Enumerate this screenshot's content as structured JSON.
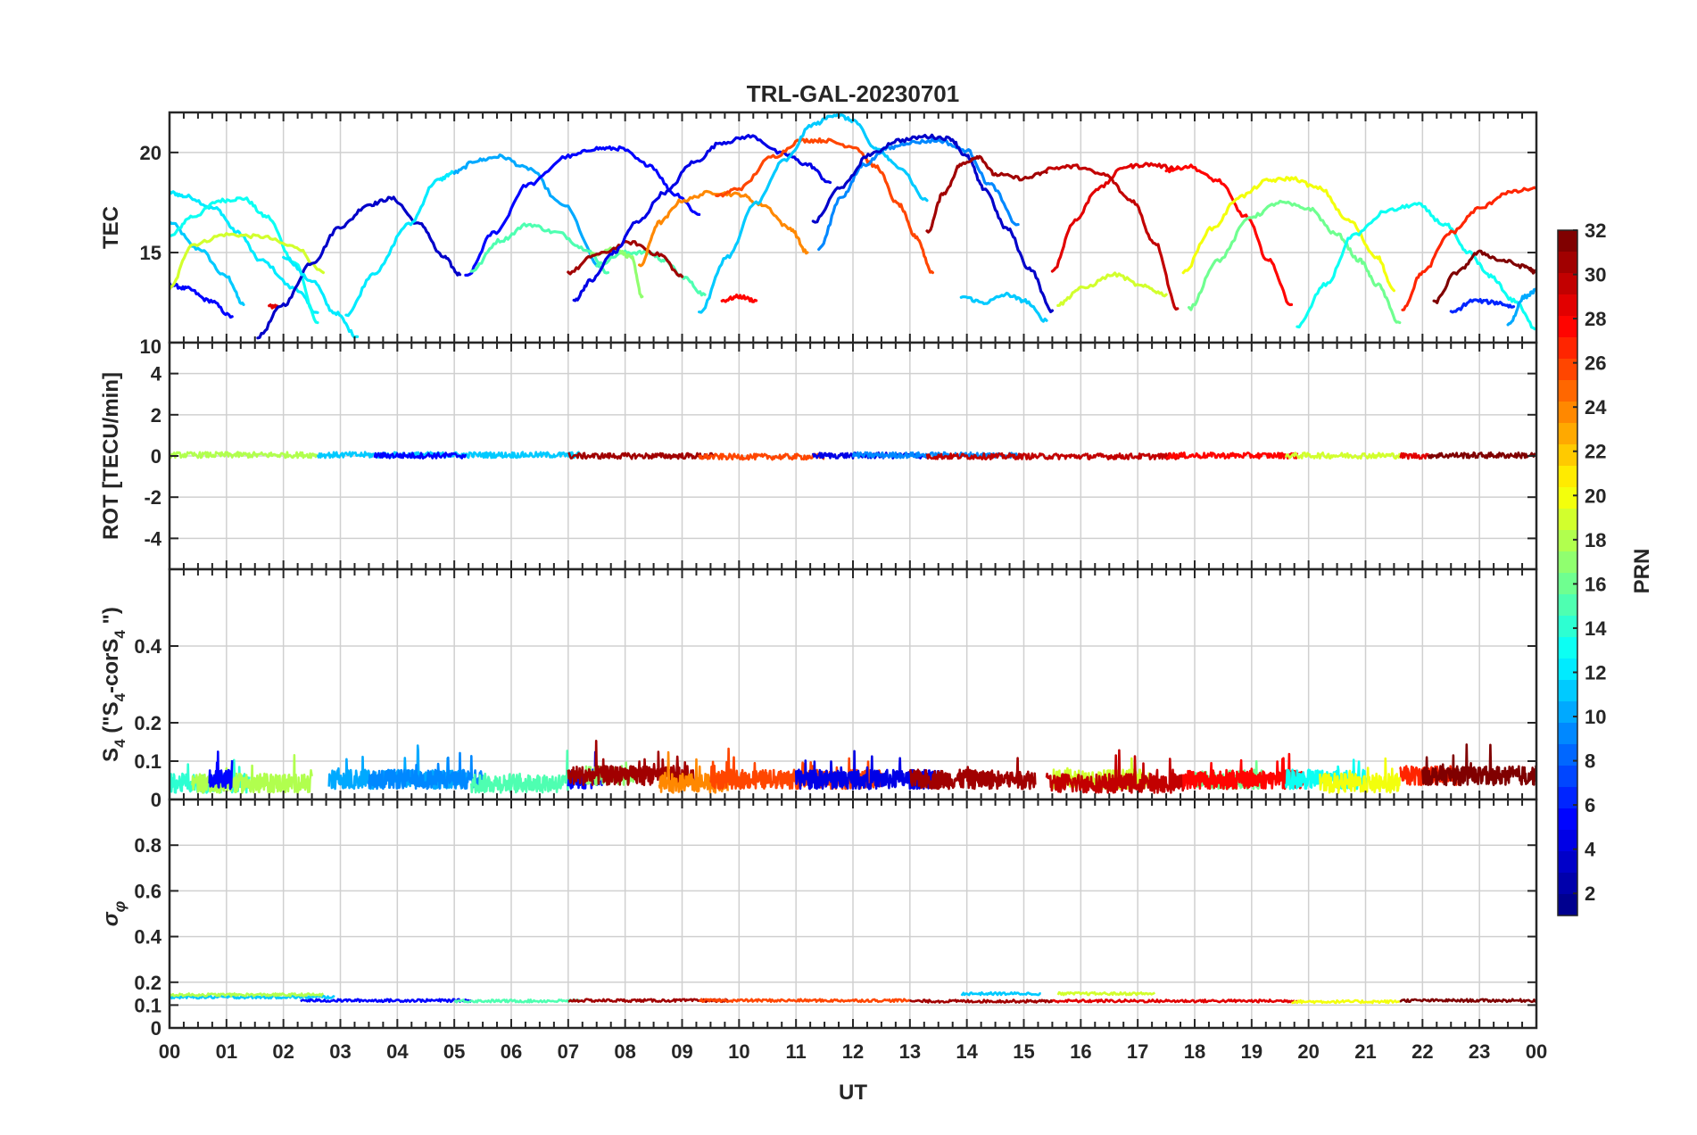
{
  "chart_data": {
    "type": "line",
    "title": "TRL-GAL-20230701",
    "xlabel": "UT",
    "x_ticks": [
      "00",
      "01",
      "02",
      "03",
      "04",
      "05",
      "06",
      "07",
      "08",
      "09",
      "10",
      "11",
      "12",
      "13",
      "14",
      "15",
      "16",
      "17",
      "18",
      "19",
      "20",
      "21",
      "22",
      "23",
      "00"
    ],
    "xlim": [
      0,
      24
    ],
    "colorbar": {
      "label": "PRN",
      "range": [
        1,
        32
      ],
      "ticks": [
        "2",
        "4",
        "6",
        "8",
        "10",
        "12",
        "14",
        "16",
        "18",
        "20",
        "22",
        "24",
        "26",
        "28",
        "30",
        "32"
      ],
      "colormap": [
        "#00008f",
        "#0000ff",
        "#0080ff",
        "#00ffff",
        "#80ff80",
        "#ffff00",
        "#ff8000",
        "#ff0000",
        "#800000"
      ]
    },
    "panels": [
      {
        "id": "tec",
        "ylabel": "TEC",
        "ylim": [
          10.5,
          22
        ],
        "y_ticks": [
          {
            "v": 15,
            "label": "15"
          },
          {
            "v": 20,
            "label": "20"
          }
        ]
      },
      {
        "id": "rot",
        "ylabel": "ROT [TECU/min]",
        "ylim": [
          -5.5,
          5.5
        ],
        "y_ticks": [
          {
            "v": -4,
            "label": "-4"
          },
          {
            "v": -2,
            "label": "-2"
          },
          {
            "v": 0,
            "label": "0"
          },
          {
            "v": 2,
            "label": "2"
          },
          {
            "v": 4,
            "label": "4"
          }
        ]
      },
      {
        "id": "s4",
        "ylabel": "S4 (\"S4-corS4\")",
        "ylim": [
          0,
          0.6
        ],
        "y_ticks": [
          {
            "v": 0,
            "label": "0"
          },
          {
            "v": 0.1,
            "label": "0.1"
          },
          {
            "v": 0.2,
            "label": "0.2"
          },
          {
            "v": 0.4,
            "label": "0.4"
          }
        ]
      },
      {
        "id": "sigma",
        "ylabel": "σφ",
        "ylim": [
          0,
          1
        ],
        "y_ticks": [
          {
            "v": 0,
            "label": "0"
          },
          {
            "v": 0.1,
            "label": "0.1"
          },
          {
            "v": 0.2,
            "label": "0.2"
          },
          {
            "v": 0.4,
            "label": "0.4"
          },
          {
            "v": 0.6,
            "label": "0.6"
          },
          {
            "v": 0.8,
            "label": "0.8"
          }
        ]
      }
    ],
    "tec_series": [
      {
        "prn": 11,
        "x": [
          0,
          0.5,
          1.0,
          1.3
        ],
        "y": [
          16.5,
          15.2,
          13.8,
          12.4
        ]
      },
      {
        "prn": 12,
        "x": [
          0,
          0.3,
          0.8,
          1.2,
          1.6,
          2.2,
          2.6
        ],
        "y": [
          18.0,
          17.8,
          17.2,
          16.0,
          14.6,
          13.2,
          12.0
        ]
      },
      {
        "prn": 13,
        "x": [
          0,
          0.4,
          0.9,
          1.3,
          1.7,
          2.2,
          2.6
        ],
        "y": [
          15.8,
          16.8,
          17.6,
          17.7,
          16.8,
          14.5,
          11.5
        ]
      },
      {
        "prn": 5,
        "x": [
          0,
          0.3,
          0.7,
          1.1
        ],
        "y": [
          13.4,
          13.2,
          12.6,
          11.8
        ]
      },
      {
        "prn": 19,
        "x": [
          0,
          0.4,
          1.0,
          1.6,
          2.2,
          2.7
        ],
        "y": [
          13.2,
          15.4,
          15.9,
          15.8,
          15.3,
          14.0
        ]
      },
      {
        "prn": 29,
        "x": [
          1.75,
          1.9
        ],
        "y": [
          12.3,
          12.3
        ]
      },
      {
        "prn": 3,
        "x": [
          1.55,
          2.0,
          2.5,
          3.0,
          3.5,
          3.9,
          4.4,
          4.8,
          5.1
        ],
        "y": [
          10.8,
          12.4,
          14.5,
          16.3,
          17.4,
          17.7,
          16.4,
          14.8,
          13.9
        ]
      },
      {
        "prn": 12,
        "x": [
          2.0,
          2.5,
          2.9,
          3.3
        ],
        "y": [
          14.8,
          13.6,
          12.0,
          10.8
        ]
      },
      {
        "prn": 12,
        "x": [
          3.1,
          3.6,
          4.2,
          4.7,
          5.0
        ],
        "y": [
          11.9,
          14.0,
          16.4,
          18.6,
          19.0
        ]
      },
      {
        "prn": 10,
        "x": [
          5.0,
          5.4,
          5.8,
          6.3,
          6.9,
          7.6
        ],
        "y": [
          19.0,
          19.6,
          19.8,
          19.2,
          17.4,
          14.2
        ]
      },
      {
        "prn": 5,
        "x": [
          5.2,
          5.7,
          6.3,
          7.0,
          7.5,
          7.9,
          8.4,
          8.9,
          9.3
        ],
        "y": [
          13.8,
          16.0,
          18.4,
          19.8,
          20.2,
          20.2,
          19.4,
          17.9,
          16.9
        ]
      },
      {
        "prn": 15,
        "x": [
          5.3,
          5.8,
          6.3,
          6.8,
          7.3,
          7.7
        ],
        "y": [
          14.1,
          15.6,
          16.4,
          16.0,
          15.2,
          14.0
        ]
      },
      {
        "prn": 15,
        "x": [
          7.5,
          8.0,
          8.4,
          8.7,
          9.0,
          9.4
        ],
        "y": [
          14.4,
          15.0,
          15.0,
          14.6,
          13.8,
          12.9
        ]
      },
      {
        "prn": 17,
        "x": [
          7.4,
          7.8,
          8.1,
          8.3
        ],
        "y": [
          14.9,
          15.2,
          14.8,
          12.8
        ]
      },
      {
        "prn": 31,
        "x": [
          7.0,
          7.5,
          8.1,
          8.6,
          9.0
        ],
        "y": [
          14.0,
          14.9,
          15.5,
          14.9,
          13.8
        ]
      },
      {
        "prn": 4,
        "x": [
          7.1,
          7.4,
          7.8,
          8.2,
          8.7,
          9.2,
          9.7,
          10.2,
          10.8,
          11.2,
          11.6
        ],
        "y": [
          12.6,
          13.6,
          15.0,
          16.5,
          18.0,
          19.5,
          20.5,
          20.8,
          19.9,
          19.4,
          18.5
        ]
      },
      {
        "prn": 24,
        "x": [
          8.25,
          8.6,
          9.0,
          9.5,
          10.0,
          10.4,
          10.9,
          11.2
        ],
        "y": [
          14.3,
          16.5,
          17.6,
          18.0,
          17.9,
          17.4,
          16.2,
          15.0
        ]
      },
      {
        "prn": 26,
        "x": [
          9.6,
          10.0,
          10.6,
          11.1,
          11.5,
          12.0,
          12.4,
          12.8,
          13.1,
          13.4
        ],
        "y": [
          17.8,
          18.2,
          19.8,
          20.6,
          20.6,
          20.3,
          19.3,
          17.4,
          15.8,
          14.0
        ]
      },
      {
        "prn": 28,
        "x": [
          9.7,
          10.0,
          10.3
        ],
        "y": [
          12.6,
          12.8,
          12.6
        ]
      },
      {
        "prn": 11,
        "x": [
          9.3,
          9.8,
          10.3,
          10.8,
          11.3,
          11.7,
          12.0,
          12.4,
          12.8,
          13.3
        ],
        "y": [
          12.0,
          14.8,
          17.5,
          19.6,
          21.4,
          21.9,
          21.6,
          20.2,
          19.3,
          17.6
        ]
      },
      {
        "prn": 9,
        "x": [
          11.4,
          11.8,
          12.2,
          12.6,
          13.0,
          13.5,
          14.0,
          14.4,
          14.9
        ],
        "y": [
          15.2,
          17.8,
          19.4,
          20.2,
          20.5,
          20.6,
          20.1,
          18.4,
          16.4
        ]
      },
      {
        "prn": 3,
        "x": [
          11.3,
          11.8,
          12.3,
          12.8,
          13.3,
          13.7,
          14.0,
          14.3,
          14.7,
          15.1,
          15.5
        ],
        "y": [
          16.5,
          18.3,
          19.9,
          20.6,
          20.8,
          20.7,
          19.8,
          18.2,
          16.2,
          14.2,
          12.1
        ]
      },
      {
        "prn": 31,
        "x": [
          13.3,
          13.6,
          13.9,
          14.2,
          14.5,
          15.0,
          15.4
        ],
        "y": [
          16.0,
          18.0,
          19.4,
          19.8,
          18.9,
          18.7,
          19.0
        ]
      },
      {
        "prn": 11,
        "x": [
          13.9,
          14.3,
          14.7,
          15.0,
          15.4
        ],
        "y": [
          12.8,
          12.5,
          12.9,
          12.6,
          11.6
        ]
      },
      {
        "prn": 29,
        "x": [
          15.5,
          15.9,
          16.3,
          16.8,
          17.2,
          17.7
        ],
        "y": [
          14.1,
          16.6,
          18.2,
          19.3,
          19.4,
          19.2
        ]
      },
      {
        "prn": 30,
        "x": [
          15.4,
          15.9,
          16.4,
          16.9,
          17.3,
          17.7
        ],
        "y": [
          19.2,
          19.3,
          18.9,
          17.6,
          15.5,
          12.2
        ]
      },
      {
        "prn": 19,
        "x": [
          15.6,
          16.0,
          16.6,
          17.1,
          17.5
        ],
        "y": [
          12.4,
          13.2,
          13.9,
          13.3,
          12.9
        ]
      },
      {
        "prn": 28,
        "x": [
          17.5,
          17.9,
          18.4,
          18.9,
          19.3,
          19.7
        ],
        "y": [
          19.1,
          19.3,
          18.6,
          16.8,
          14.6,
          12.4
        ]
      },
      {
        "prn": 20,
        "x": [
          17.8,
          18.3,
          18.8,
          19.3,
          19.7,
          20.2,
          20.7,
          21.2,
          21.5
        ],
        "y": [
          14.0,
          16.2,
          17.8,
          18.6,
          18.7,
          18.2,
          16.6,
          14.8,
          13.1
        ]
      },
      {
        "prn": 16,
        "x": [
          17.9,
          18.4,
          19.0,
          19.5,
          20.0,
          20.5,
          20.9,
          21.2,
          21.6
        ],
        "y": [
          12.2,
          14.6,
          16.8,
          17.5,
          17.2,
          15.9,
          14.6,
          13.4,
          11.5
        ]
      },
      {
        "prn": 13,
        "x": [
          19.8,
          20.3,
          20.8,
          21.4,
          21.9,
          22.4,
          22.8,
          23.2,
          23.6,
          24.0
        ],
        "y": [
          11.3,
          13.4,
          15.9,
          17.1,
          17.4,
          16.4,
          15.0,
          13.8,
          12.6,
          11.2
        ]
      },
      {
        "prn": 27,
        "x": [
          21.65,
          22.0,
          22.5,
          23.0,
          23.5,
          24.0
        ],
        "y": [
          12.2,
          14.0,
          16.0,
          17.2,
          18.0,
          18.2
        ]
      },
      {
        "prn": 32,
        "x": [
          22.2,
          22.6,
          23.0,
          23.4,
          23.8,
          24.0
        ],
        "y": [
          12.5,
          14.0,
          15.0,
          14.6,
          14.3,
          14.0
        ]
      },
      {
        "prn": 6,
        "x": [
          22.5,
          22.9,
          23.3,
          23.6
        ],
        "y": [
          12.0,
          12.6,
          12.5,
          12.3
        ]
      },
      {
        "prn": 10,
        "x": [
          23.5,
          23.8,
          24.0
        ],
        "y": [
          11.4,
          12.8,
          13.1
        ]
      }
    ],
    "rot_series": [
      {
        "prn": 18,
        "x0": 0,
        "x1": 2.6,
        "level": 0.05
      },
      {
        "prn": 11,
        "x0": 2.6,
        "x1": 7.2,
        "level": 0.05
      },
      {
        "prn": 5,
        "x0": 3.6,
        "x1": 5.2,
        "level": 0.02
      },
      {
        "prn": 31,
        "x0": 7.0,
        "x1": 9.6,
        "level": 0.0
      },
      {
        "prn": 26,
        "x0": 9.3,
        "x1": 11.5,
        "level": -0.04
      },
      {
        "prn": 4,
        "x0": 11.3,
        "x1": 13.3,
        "level": 0.02
      },
      {
        "prn": 9,
        "x0": 12.0,
        "x1": 14.9,
        "level": 0.04
      },
      {
        "prn": 30,
        "x0": 13.3,
        "x1": 17.8,
        "level": -0.02
      },
      {
        "prn": 28,
        "x0": 17.5,
        "x1": 19.8,
        "level": 0.02
      },
      {
        "prn": 19,
        "x0": 19.6,
        "x1": 21.6,
        "level": 0.02
      },
      {
        "prn": 29,
        "x0": 21.6,
        "x1": 22.1,
        "level": 0.0
      },
      {
        "prn": 32,
        "x0": 22.1,
        "x1": 24.0,
        "level": 0.03
      }
    ],
    "s4_series": [
      {
        "prn": 14,
        "x0": 0,
        "x1": 1.4,
        "base": 0.04
      },
      {
        "prn": 18,
        "x0": 0.4,
        "x1": 2.5,
        "base": 0.04
      },
      {
        "prn": 5,
        "x0": 0.7,
        "x1": 1.1,
        "base": 0.05
      },
      {
        "prn": 10,
        "x0": 2.8,
        "x1": 5.2,
        "base": 0.05
      },
      {
        "prn": 9,
        "x0": 3.5,
        "x1": 5.5,
        "base": 0.05
      },
      {
        "prn": 15,
        "x0": 5.3,
        "x1": 7.0,
        "base": 0.04
      },
      {
        "prn": 5,
        "x0": 7.0,
        "x1": 7.6,
        "base": 0.05
      },
      {
        "prn": 17,
        "x0": 7.3,
        "x1": 8.2,
        "base": 0.06
      },
      {
        "prn": 31,
        "x0": 7.0,
        "x1": 9.2,
        "base": 0.06
      },
      {
        "prn": 24,
        "x0": 8.6,
        "x1": 9.8,
        "base": 0.04
      },
      {
        "prn": 26,
        "x0": 9.5,
        "x1": 12.5,
        "base": 0.05
      },
      {
        "prn": 4,
        "x0": 11.0,
        "x1": 13.5,
        "base": 0.05
      },
      {
        "prn": 31,
        "x0": 13.0,
        "x1": 15.2,
        "base": 0.05
      },
      {
        "prn": 19,
        "x0": 15.5,
        "x1": 17.2,
        "base": 0.05
      },
      {
        "prn": 30,
        "x0": 15.4,
        "x1": 17.8,
        "base": 0.04
      },
      {
        "prn": 16,
        "x0": 18.0,
        "x1": 19.2,
        "base": 0.05
      },
      {
        "prn": 28,
        "x0": 17.8,
        "x1": 19.9,
        "base": 0.05
      },
      {
        "prn": 13,
        "x0": 19.6,
        "x1": 21.0,
        "base": 0.05
      },
      {
        "prn": 20,
        "x0": 20.2,
        "x1": 21.6,
        "base": 0.04
      },
      {
        "prn": 27,
        "x0": 21.6,
        "x1": 22.6,
        "base": 0.06
      },
      {
        "prn": 32,
        "x0": 22.0,
        "x1": 24.0,
        "base": 0.06
      }
    ],
    "sigma_series": [
      {
        "prn": 11,
        "x0": 0,
        "x1": 2.9,
        "level": 0.135
      },
      {
        "prn": 18,
        "x0": 0,
        "x1": 2.7,
        "level": 0.145
      },
      {
        "prn": 5,
        "x0": 2.3,
        "x1": 5.3,
        "level": 0.12
      },
      {
        "prn": 15,
        "x0": 5.0,
        "x1": 7.2,
        "level": 0.118
      },
      {
        "prn": 31,
        "x0": 7.0,
        "x1": 9.8,
        "level": 0.12
      },
      {
        "prn": 26,
        "x0": 9.3,
        "x1": 13.0,
        "level": 0.12
      },
      {
        "prn": 11,
        "x0": 13.9,
        "x1": 15.3,
        "level": 0.15
      },
      {
        "prn": 31,
        "x0": 13.0,
        "x1": 15.5,
        "level": 0.117
      },
      {
        "prn": 19,
        "x0": 15.6,
        "x1": 17.3,
        "level": 0.15
      },
      {
        "prn": 29,
        "x0": 15.5,
        "x1": 19.8,
        "level": 0.118
      },
      {
        "prn": 20,
        "x0": 19.7,
        "x1": 21.6,
        "level": 0.115
      },
      {
        "prn": 32,
        "x0": 21.6,
        "x1": 24.0,
        "level": 0.12
      }
    ]
  }
}
